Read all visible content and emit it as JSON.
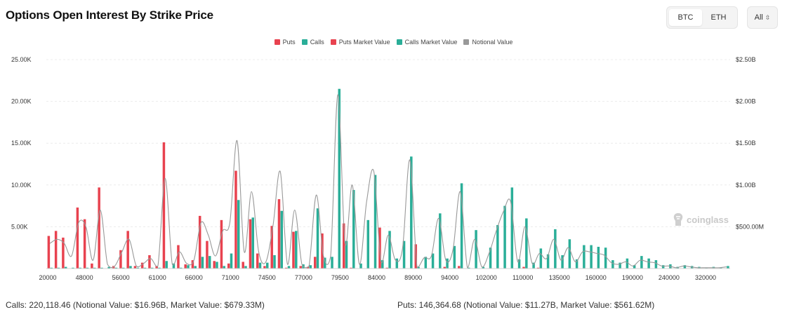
{
  "header": {
    "title": "Options Open Interest By Strike Price"
  },
  "toggle": {
    "options": [
      "BTC",
      "ETH"
    ],
    "selected": "BTC"
  },
  "dropdown": {
    "value": "All",
    "chevron": "⌃⌄"
  },
  "watermark": {
    "text": "coinglass"
  },
  "footer": {
    "calls": "Calls: 220,118.46 (Notional Value: $16.96B, Market Value: $679.33M)",
    "puts": "Puts: 146,364.68 (Notional Value: $11.27B, Market Value: $561.62M)"
  },
  "colors": {
    "puts": "#e8424f",
    "calls": "#2aae98",
    "notional": "#999999"
  },
  "chart_data": {
    "type": "bar",
    "legend": [
      "Puts",
      "Calls",
      "Puts Market Value",
      "Calls Market Value",
      "Notional Value"
    ],
    "legend_position": "top-center",
    "left_ylim": [
      0,
      25000
    ],
    "left_yticks": [
      "25.00K",
      "20.00K",
      "15.00K",
      "10.00K",
      "5.00K"
    ],
    "right_ylim": [
      0,
      2500000000
    ],
    "right_yticks": [
      "$2.50B",
      "$2.00B",
      "$1.50B",
      "$1.00B",
      "$500.00M"
    ],
    "x_tick_labels": [
      "20000",
      "48000",
      "56000",
      "61000",
      "66000",
      "71000",
      "74500",
      "77000",
      "79500",
      "84000",
      "89000",
      "94000",
      "102000",
      "110000",
      "135000",
      "160000",
      "190000",
      "240000",
      "320000"
    ],
    "grid": true,
    "series": [
      {
        "name": "Puts",
        "values": [
          3900,
          4500,
          3700,
          0,
          7300,
          5900,
          600,
          9700,
          0,
          300,
          2200,
          4500,
          300,
          700,
          1600,
          300,
          15100,
          0,
          2800,
          500,
          1000,
          6300,
          3300,
          900,
          5800,
          600,
          11700,
          800,
          5900,
          1800,
          300,
          5100,
          8300,
          100,
          4400,
          300,
          200,
          1400,
          4200,
          0,
          0,
          5400,
          100,
          0,
          0,
          0,
          4900,
          100,
          0,
          0,
          0,
          2900,
          0,
          0,
          0,
          200,
          0,
          300,
          0,
          0,
          0,
          0,
          0,
          0,
          0,
          0,
          200,
          0,
          100,
          0,
          0,
          0,
          0,
          0,
          0,
          0,
          0,
          0,
          0,
          0,
          0,
          0,
          0,
          0,
          0,
          0,
          0,
          0,
          0,
          0,
          0,
          0,
          0,
          0,
          0
        ]
      },
      {
        "name": "Calls",
        "values": [
          100,
          100,
          200,
          100,
          100,
          100,
          100,
          100,
          200,
          100,
          100,
          300,
          100,
          100,
          100,
          100,
          900,
          600,
          100,
          400,
          300,
          1400,
          1500,
          800,
          300,
          1800,
          8200,
          300,
          6100,
          700,
          700,
          1600,
          6900,
          300,
          4500,
          500,
          400,
          7200,
          1300,
          1400,
          21500,
          3300,
          9400,
          600,
          5800,
          11200,
          1000,
          4500,
          1200,
          3300,
          13400,
          200,
          1400,
          1800,
          6600,
          1200,
          2700,
          10200,
          100,
          4600,
          200,
          2500,
          5200,
          7500,
          9700,
          1100,
          6000,
          700,
          2400,
          1700,
          4700,
          1600,
          3500,
          1100,
          2800,
          2800,
          2600,
          2500,
          1000,
          700,
          1200,
          400,
          1500,
          1200,
          1000,
          400,
          500,
          200,
          400,
          300,
          200,
          100,
          200,
          100,
          300
        ]
      },
      {
        "name": "Puts Market Value",
        "values": [
          0,
          0,
          0,
          0,
          0,
          0,
          0,
          0,
          0,
          0,
          0,
          0,
          0,
          0,
          0,
          0,
          0,
          0,
          0,
          0,
          0,
          0,
          0,
          0,
          0,
          0,
          0,
          0,
          0,
          0,
          0,
          0,
          0,
          0,
          0,
          0,
          0,
          0,
          0,
          0,
          0,
          0,
          0,
          0,
          0,
          0,
          0,
          0,
          0,
          0,
          0,
          0,
          0,
          0,
          0,
          0,
          0,
          0,
          0,
          0,
          0,
          0,
          0,
          0,
          0,
          0,
          0,
          0,
          0,
          0,
          0,
          0,
          0,
          0,
          0,
          0,
          0,
          0,
          0,
          0,
          0,
          0,
          0,
          0,
          0,
          0,
          0,
          0,
          0,
          0,
          0,
          0,
          0,
          0,
          0
        ]
      },
      {
        "name": "Calls Market Value",
        "values": [
          0,
          0,
          0,
          0,
          0,
          0,
          0,
          0,
          0,
          0,
          0,
          0,
          0,
          0,
          0,
          0,
          0,
          0,
          0,
          0,
          0,
          0,
          0,
          0,
          0,
          0,
          0,
          0,
          0,
          0,
          0,
          0,
          0,
          0,
          0,
          0,
          0,
          0,
          0,
          0,
          0,
          0,
          0,
          0,
          0,
          0,
          0,
          0,
          0,
          0,
          0,
          0,
          0,
          0,
          0,
          0,
          0,
          0,
          0,
          0,
          0,
          0,
          0,
          0,
          0,
          0,
          0,
          0,
          0,
          0,
          0,
          0,
          0,
          0,
          0,
          0,
          0,
          0,
          0,
          0,
          0,
          0,
          0,
          0,
          0,
          0,
          0,
          0,
          0,
          0,
          0,
          0,
          0,
          0,
          0
        ]
      },
      {
        "name": "Notional Value",
        "values": [
          300000000,
          350000000,
          300000000,
          150000000,
          550000000,
          500000000,
          100000000,
          700000000,
          50000000,
          30000000,
          200000000,
          350000000,
          30000000,
          60000000,
          120000000,
          30000000,
          1080000000,
          50000000,
          200000000,
          60000000,
          100000000,
          550000000,
          400000000,
          150000000,
          450000000,
          550000000,
          1530000000,
          200000000,
          920000000,
          200000000,
          80000000,
          520000000,
          1160000000,
          50000000,
          700000000,
          50000000,
          30000000,
          880000000,
          150000000,
          150000000,
          2080000000,
          300000000,
          1000000000,
          50000000,
          800000000,
          1160000000,
          80000000,
          400000000,
          100000000,
          250000000,
          1300000000,
          20000000,
          130000000,
          150000000,
          600000000,
          100000000,
          230000000,
          920000000,
          10000000,
          350000000,
          20000000,
          180000000,
          450000000,
          680000000,
          800000000,
          80000000,
          500000000,
          60000000,
          180000000,
          120000000,
          350000000,
          100000000,
          250000000,
          80000000,
          200000000,
          200000000,
          180000000,
          160000000,
          70000000,
          50000000,
          80000000,
          30000000,
          100000000,
          80000000,
          70000000,
          30000000,
          30000000,
          10000000,
          30000000,
          20000000,
          10000000,
          10000000,
          10000000,
          10000000,
          20000000
        ]
      }
    ]
  }
}
